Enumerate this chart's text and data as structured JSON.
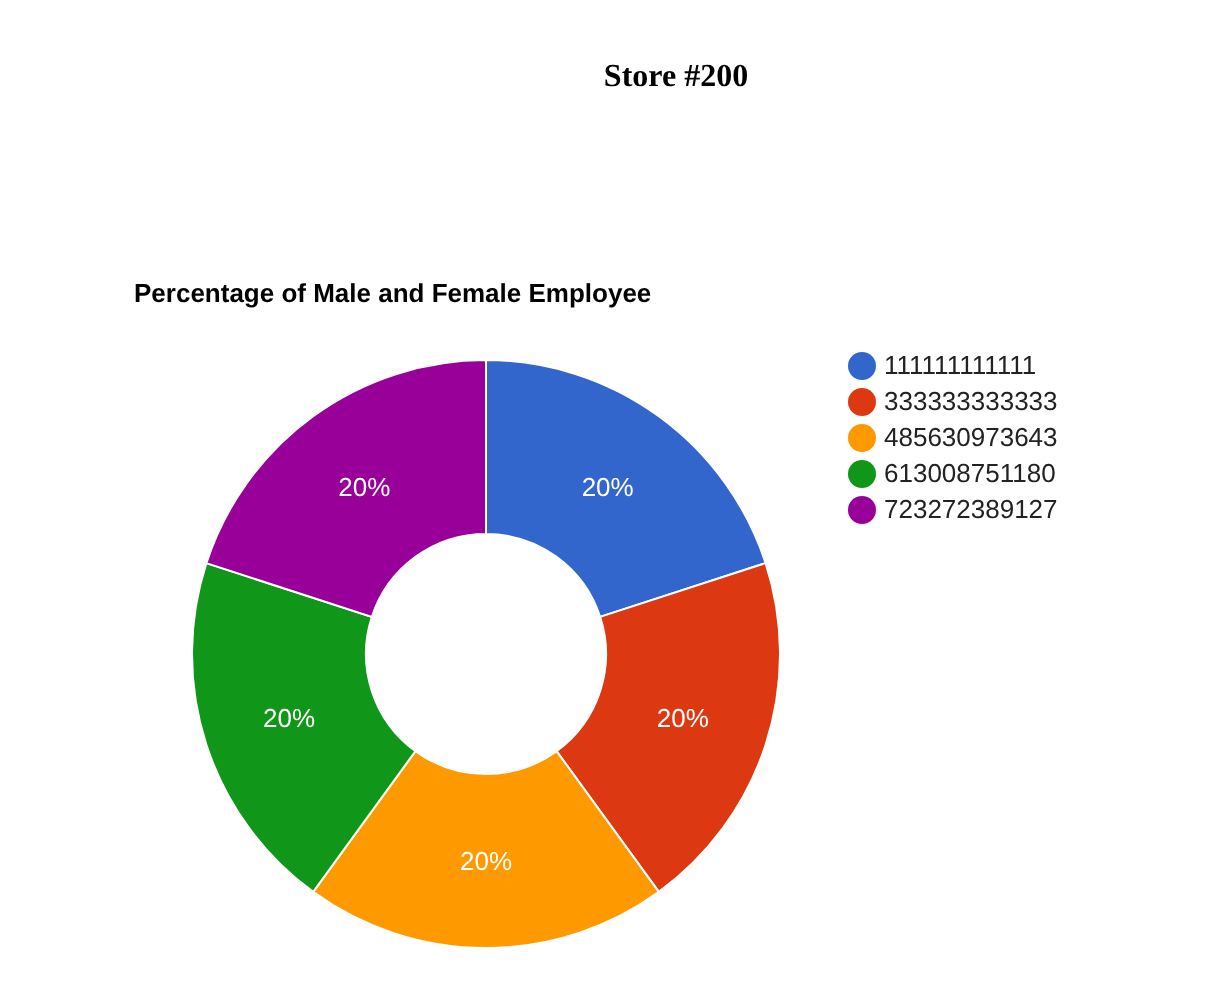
{
  "chart_data": {
    "type": "donut",
    "title": "Percentage of Male and Female Employee",
    "annotations": [
      "Store #200"
    ],
    "categories": [
      "111111111111",
      "333333333333",
      "485630973643",
      "613008751180",
      "723272389127"
    ],
    "values": [
      20,
      20,
      20,
      20,
      20
    ],
    "colors": [
      "#3366cc",
      "#dc3912",
      "#ff9900",
      "#109618",
      "#990099"
    ],
    "value_labels": [
      "20%",
      "20%",
      "20%",
      "20%",
      "20%"
    ],
    "legend": "right"
  }
}
